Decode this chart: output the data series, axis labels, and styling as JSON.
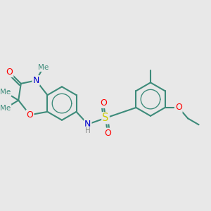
{
  "bg_color": "#e8e8e8",
  "bond_color": "#3d8b7a",
  "bond_width": 1.5,
  "atom_colors": {
    "O": "#ff0000",
    "N": "#0000cc",
    "S": "#cccc00",
    "C": "#3d8b7a"
  },
  "figsize": [
    3.0,
    3.0
  ],
  "dpi": 100,
  "xlim": [
    0,
    10
  ],
  "ylim": [
    0,
    10
  ]
}
